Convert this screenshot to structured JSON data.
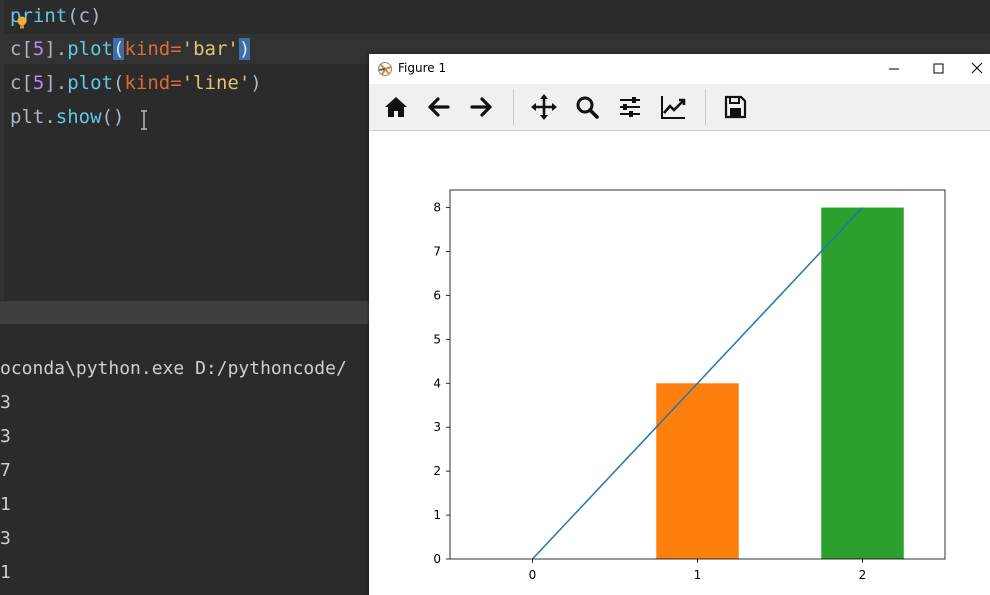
{
  "editor": {
    "lines": {
      "l1": {
        "fn": "print",
        "rest": "(c)"
      },
      "l2": {
        "obj": "c[",
        "idx": "5",
        "mid": "].",
        "fn": "plot",
        "open": "(",
        "kw": "kind=",
        "str": "'bar'",
        "close": ")"
      },
      "l3": {
        "obj": "c[",
        "idx": "5",
        "mid": "].",
        "fn": "plot",
        "open": "(",
        "kw": "kind=",
        "str": "'line'",
        "close": ")"
      },
      "l4": {
        "obj": "plt.",
        "fn": "show",
        "rest": "()"
      }
    }
  },
  "console": {
    "lines": [
      "oconda\\python.exe D:/pythoncode/",
      "3",
      "3",
      "7",
      "1",
      "3",
      "1"
    ]
  },
  "figure": {
    "title": "Figure 1",
    "icons": [
      "home-icon",
      "back-arrow-icon",
      "forward-arrow-icon",
      "pan-icon",
      "zoom-icon",
      "subplots-config-icon",
      "edit-axis-icon",
      "save-icon"
    ]
  },
  "chart_data": {
    "type": "bar",
    "categories": [
      "0",
      "1",
      "2"
    ],
    "series": [
      {
        "type": "bar",
        "values": [
          0,
          4,
          8
        ],
        "colors": [
          "#1f77b4",
          "#ff7f0e",
          "#2ca02c"
        ]
      },
      {
        "type": "line",
        "values": [
          0,
          4,
          8
        ],
        "color": "#1f77b4"
      }
    ],
    "yticks": [
      0,
      1,
      2,
      3,
      4,
      5,
      6,
      7,
      8
    ],
    "ylim": [
      0,
      8.4
    ],
    "xlim": [
      -0.5,
      2.5
    ],
    "title": "",
    "xlabel": "",
    "ylabel": ""
  }
}
